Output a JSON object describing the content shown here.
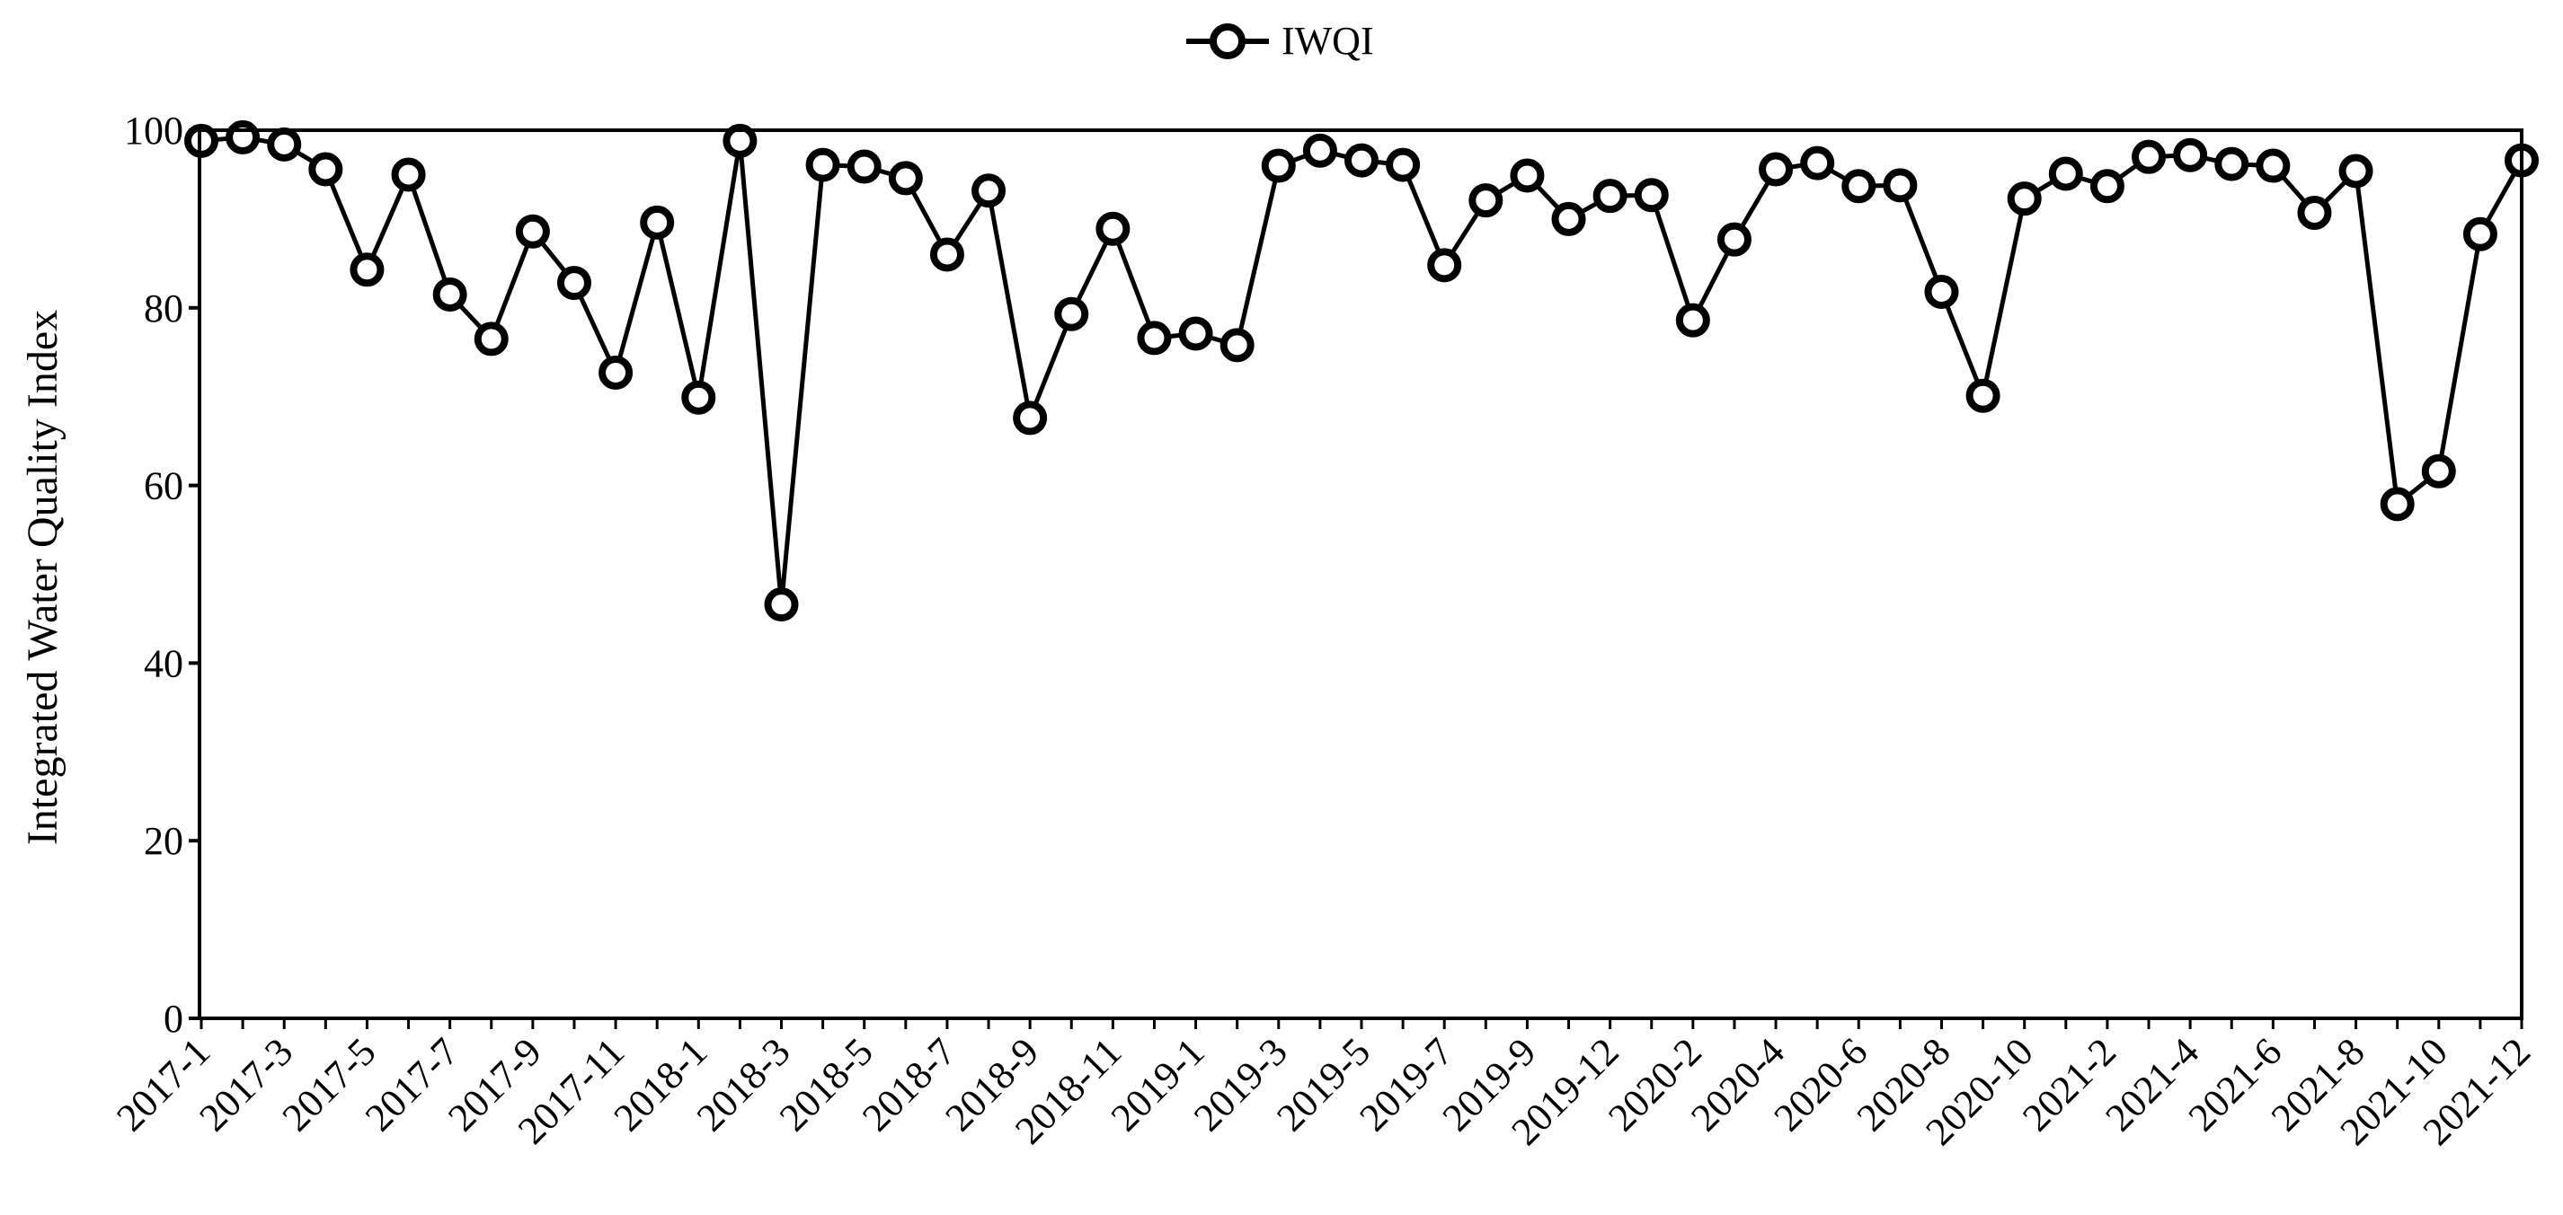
{
  "chart_data": {
    "type": "line",
    "legend": {
      "position": "top-center",
      "entries": [
        "IWQI"
      ]
    },
    "ylabel": "Integrated Water Quality  Index",
    "xlabel": "",
    "ylim": [
      0,
      100
    ],
    "yticks": [
      0,
      20,
      40,
      60,
      80,
      100
    ],
    "grid": false,
    "x_tick_labels": [
      "2017-1",
      "2017-3",
      "2017-5",
      "2017-7",
      "2017-9",
      "2017-11",
      "2018-1",
      "2018-3",
      "2018-5",
      "2018-7",
      "2018-9",
      "2018-11",
      "2019-1",
      "2019-3",
      "2019-5",
      "2019-7",
      "2019-9",
      "2019-12",
      "2020-2",
      "2020-4",
      "2020-6",
      "2020-8",
      "2020-10",
      "2021-2",
      "2021-4",
      "2021-6",
      "2021-8",
      "2021-10",
      "2021-12"
    ],
    "series": [
      {
        "name": "IWQI",
        "color": "#000000",
        "marker": "open-circle",
        "values": [
          98.8,
          99.2,
          98.4,
          95.6,
          84.3,
          95.0,
          81.5,
          76.5,
          88.6,
          82.8,
          72.7,
          89.6,
          69.9,
          98.8,
          46.6,
          96.1,
          95.9,
          94.6,
          86.0,
          93.2,
          67.6,
          79.3,
          88.9,
          76.6,
          77.1,
          75.8,
          96.0,
          97.7,
          96.6,
          96.1,
          84.8,
          92.1,
          94.9,
          90.0,
          92.6,
          92.7,
          78.6,
          87.7,
          95.6,
          96.3,
          93.7,
          93.8,
          81.8,
          70.1,
          92.3,
          95.1,
          93.7,
          97.0,
          97.2,
          96.2,
          96.0,
          90.7,
          95.4,
          57.9,
          61.6,
          88.3,
          96.6
        ]
      }
    ]
  }
}
